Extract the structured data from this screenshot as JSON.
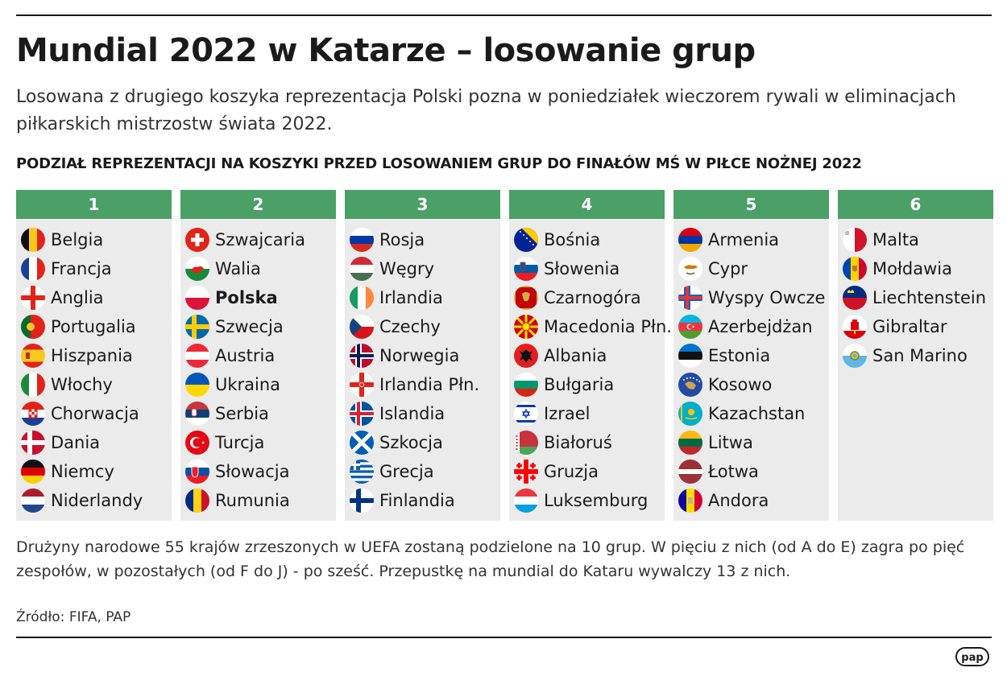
{
  "title": "Mundial 2022 w Katarze – losowanie grup",
  "lead": "Losowana z drugiego koszyka reprezentacja Polski pozna w poniedziałek wieczorem rywali w eliminacjach piłkarskich mistrzostw świata 2022.",
  "subheading": "PODZIAŁ REPREZENTACJI NA KOSZYKI PRZED LOSOWANIEM GRUP DO FINAŁÓW MŚ W PIŁCE NOŻNEJ 2022",
  "header_color": "#4aa066",
  "pots": [
    {
      "label": "1",
      "teams": [
        {
          "name": "Belgia",
          "flag": "belgium-flag"
        },
        {
          "name": "Francja",
          "flag": "france-flag"
        },
        {
          "name": "Anglia",
          "flag": "england-flag"
        },
        {
          "name": "Portugalia",
          "flag": "portugal-flag"
        },
        {
          "name": "Hiszpania",
          "flag": "spain-flag"
        },
        {
          "name": "Włochy",
          "flag": "italy-flag"
        },
        {
          "name": "Chorwacja",
          "flag": "croatia-flag"
        },
        {
          "name": "Dania",
          "flag": "denmark-flag"
        },
        {
          "name": "Niemcy",
          "flag": "germany-flag"
        },
        {
          "name": "Niderlandy",
          "flag": "netherlands-flag"
        }
      ]
    },
    {
      "label": "2",
      "teams": [
        {
          "name": "Szwajcaria",
          "flag": "switzerland-flag"
        },
        {
          "name": "Walia",
          "flag": "wales-flag"
        },
        {
          "name": "Polska",
          "flag": "poland-flag",
          "highlight": true
        },
        {
          "name": "Szwecja",
          "flag": "sweden-flag"
        },
        {
          "name": "Austria",
          "flag": "austria-flag"
        },
        {
          "name": "Ukraina",
          "flag": "ukraine-flag"
        },
        {
          "name": "Serbia",
          "flag": "serbia-flag"
        },
        {
          "name": "Turcja",
          "flag": "turkey-flag"
        },
        {
          "name": "Słowacja",
          "flag": "slovakia-flag"
        },
        {
          "name": "Rumunia",
          "flag": "romania-flag"
        }
      ]
    },
    {
      "label": "3",
      "teams": [
        {
          "name": "Rosja",
          "flag": "russia-flag"
        },
        {
          "name": "Węgry",
          "flag": "hungary-flag"
        },
        {
          "name": "Irlandia",
          "flag": "ireland-flag"
        },
        {
          "name": "Czechy",
          "flag": "czechia-flag"
        },
        {
          "name": "Norwegia",
          "flag": "norway-flag"
        },
        {
          "name": "Irlandia Płn.",
          "flag": "northern-ireland-flag"
        },
        {
          "name": "Islandia",
          "flag": "iceland-flag"
        },
        {
          "name": "Szkocja",
          "flag": "scotland-flag"
        },
        {
          "name": "Grecja",
          "flag": "greece-flag"
        },
        {
          "name": "Finlandia",
          "flag": "finland-flag"
        }
      ]
    },
    {
      "label": "4",
      "teams": [
        {
          "name": "Bośnia",
          "flag": "bosnia-flag"
        },
        {
          "name": "Słowenia",
          "flag": "slovenia-flag"
        },
        {
          "name": "Czarnogóra",
          "flag": "montenegro-flag"
        },
        {
          "name": "Macedonia Płn.",
          "flag": "north-macedonia-flag"
        },
        {
          "name": "Albania",
          "flag": "albania-flag"
        },
        {
          "name": "Bułgaria",
          "flag": "bulgaria-flag"
        },
        {
          "name": "Izrael",
          "flag": "israel-flag"
        },
        {
          "name": "Białoruś",
          "flag": "belarus-flag"
        },
        {
          "name": "Gruzja",
          "flag": "georgia-flag"
        },
        {
          "name": "Luksemburg",
          "flag": "luxembourg-flag"
        }
      ]
    },
    {
      "label": "5",
      "teams": [
        {
          "name": "Armenia",
          "flag": "armenia-flag"
        },
        {
          "name": "Cypr",
          "flag": "cyprus-flag"
        },
        {
          "name": "Wyspy Owcze",
          "flag": "faroe-islands-flag"
        },
        {
          "name": "Azerbejdżan",
          "flag": "azerbaijan-flag"
        },
        {
          "name": "Estonia",
          "flag": "estonia-flag"
        },
        {
          "name": "Kosowo",
          "flag": "kosovo-flag"
        },
        {
          "name": "Kazachstan",
          "flag": "kazakhstan-flag"
        },
        {
          "name": "Litwa",
          "flag": "lithuania-flag"
        },
        {
          "name": "Łotwa",
          "flag": "latvia-flag"
        },
        {
          "name": "Andora",
          "flag": "andorra-flag"
        }
      ]
    },
    {
      "label": "6",
      "teams": [
        {
          "name": "Malta",
          "flag": "malta-flag"
        },
        {
          "name": "Mołdawia",
          "flag": "moldova-flag"
        },
        {
          "name": "Liechtenstein",
          "flag": "liechtenstein-flag"
        },
        {
          "name": "Gibraltar",
          "flag": "gibraltar-flag"
        },
        {
          "name": "San Marino",
          "flag": "san-marino-flag"
        }
      ]
    }
  ],
  "footnote": "Drużyny narodowe 55 krajów zrzeszonych w UEFA zostaną podzielone na 10 grup. W pięciu z nich (od A do E) zagra po pięć zespołów, w pozostałych (od F do J) - po sześć. Przepustkę na mundial do Kataru wywalczy 13 z nich.",
  "source": "Źródło: FIFA, PAP",
  "logo": "pap"
}
